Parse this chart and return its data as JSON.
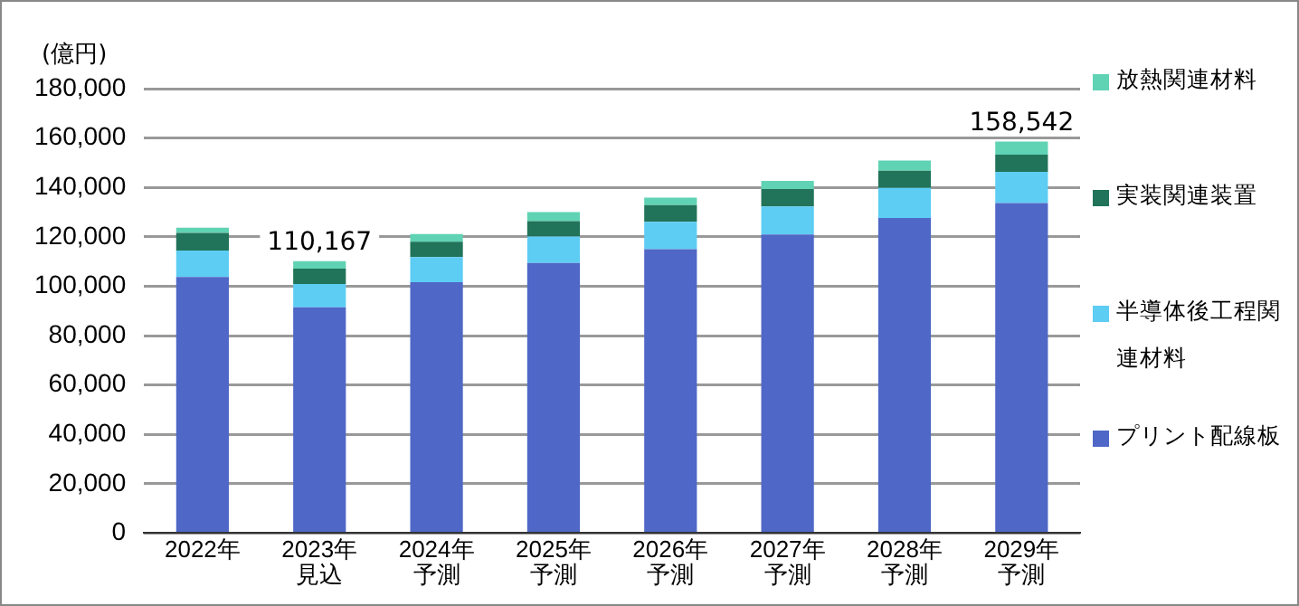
{
  "chart_data": {
    "type": "bar",
    "stacked": true,
    "ylabel": "(億円)",
    "categories": [
      "2022年",
      "2023年見込",
      "2024年予測",
      "2025年予測",
      "2026年予測",
      "2027年予測",
      "2028年予測",
      "2029年予測"
    ],
    "series": [
      {
        "name": "プリント配線板",
        "color": "#4f67c6",
        "values": [
          103700,
          91467,
          101600,
          109400,
          115000,
          120900,
          127600,
          133642
        ]
      },
      {
        "name": "半導体後工程関連材料",
        "color": "#5dcdf3",
        "values": [
          10700,
          9400,
          10200,
          10700,
          11100,
          11400,
          12200,
          12700
        ]
      },
      {
        "name": "実装関連装置",
        "color": "#217359",
        "values": [
          7200,
          6200,
          6200,
          6200,
          6700,
          7000,
          7000,
          6900
        ]
      },
      {
        "name": "放熱関連材料",
        "color": "#5fd3b3",
        "values": [
          2100,
          3100,
          3100,
          3700,
          3100,
          3300,
          4100,
          5300
        ]
      }
    ],
    "totals": [
      null,
      "110,167",
      null,
      null,
      null,
      null,
      null,
      "158,542"
    ],
    "ylim": [
      0,
      180000
    ],
    "yticks": [
      0,
      {
        "value": 20000,
        "label": "20,000"
      },
      {
        "value": 40000,
        "label": "40,000"
      },
      {
        "value": 60000,
        "label": "60,000"
      },
      {
        "value": 80000,
        "label": "80,000"
      },
      {
        "value": 100000,
        "label": "100,000"
      },
      {
        "value": 120000,
        "label": "120,000"
      },
      {
        "value": 140000,
        "label": "140,000"
      },
      {
        "value": 160000,
        "label": "160,000"
      },
      {
        "value": 180000,
        "label": "180,000"
      }
    ],
    "grid": "y",
    "legend": "right"
  }
}
